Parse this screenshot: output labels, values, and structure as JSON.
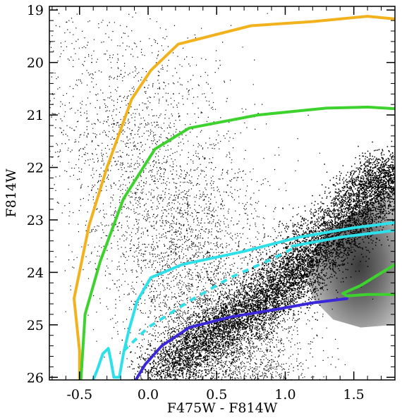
{
  "chart_data": {
    "type": "scatter",
    "xlabel": "F475W - F814W",
    "ylabel": "F814W",
    "xlim": [
      -0.72,
      1.8
    ],
    "ylim": [
      26.05,
      18.93
    ],
    "y_inverted": true,
    "x_ticks": [
      -0.5,
      0.0,
      0.5,
      1.0,
      1.5
    ],
    "x_tick_labels": [
      "-0.5",
      "0.0",
      "0.5",
      "1.0",
      "1.5"
    ],
    "y_ticks": [
      19,
      20,
      21,
      22,
      23,
      24,
      25,
      26
    ],
    "y_tick_labels": [
      "19",
      "20",
      "21",
      "22",
      "23",
      "24",
      "25",
      "26"
    ],
    "background": "dense black stellar color-magnitude point cloud with grey-shaded density region",
    "series": [
      {
        "color": "#f2b21e",
        "style": "solid",
        "points": [
          [
            -0.5,
            26.05
          ],
          [
            -0.5,
            25.5
          ],
          [
            -0.54,
            24.5
          ],
          [
            -0.43,
            23.1
          ],
          [
            -0.3,
            22.0
          ],
          [
            -0.12,
            20.7
          ],
          [
            0.02,
            20.15
          ],
          [
            0.22,
            19.65
          ],
          [
            0.75,
            19.3
          ],
          [
            1.2,
            19.22
          ],
          [
            1.6,
            19.12
          ],
          [
            1.8,
            19.17
          ]
        ]
      },
      {
        "color": "#3ed22e",
        "style": "solid",
        "points": [
          [
            -0.49,
            26.05
          ],
          [
            -0.46,
            24.8
          ],
          [
            -0.35,
            23.8
          ],
          [
            -0.18,
            22.6
          ],
          [
            0.05,
            21.65
          ],
          [
            0.3,
            21.25
          ],
          [
            0.8,
            21.0
          ],
          [
            1.3,
            20.87
          ],
          [
            1.6,
            20.85
          ],
          [
            1.8,
            20.88
          ]
        ]
      },
      {
        "color": "#3ed22e",
        "style": "solid",
        "points": [
          [
            1.8,
            23.85
          ],
          [
            1.55,
            24.25
          ],
          [
            1.42,
            24.4
          ],
          [
            1.45,
            24.45
          ],
          [
            1.6,
            24.42
          ],
          [
            1.8,
            24.42
          ]
        ]
      },
      {
        "color": "#2ee0ea",
        "style": "solid",
        "points": [
          [
            -0.4,
            26.05
          ],
          [
            -0.37,
            25.85
          ],
          [
            -0.33,
            25.55
          ],
          [
            -0.29,
            25.45
          ],
          [
            -0.27,
            25.7
          ],
          [
            -0.25,
            26.0
          ],
          [
            -0.21,
            26.0
          ],
          [
            -0.18,
            25.55
          ],
          [
            -0.14,
            25.1
          ],
          [
            -0.08,
            24.55
          ],
          [
            0.02,
            24.1
          ],
          [
            0.25,
            23.85
          ],
          [
            0.7,
            23.6
          ],
          [
            1.1,
            23.33
          ],
          [
            1.5,
            23.15
          ],
          [
            1.8,
            23.05
          ]
        ]
      },
      {
        "color": "#2ee0ea",
        "style": "solid",
        "points": [
          [
            1.05,
            23.5
          ],
          [
            1.4,
            23.33
          ],
          [
            1.8,
            23.2
          ]
        ]
      },
      {
        "color": "#2ee0ea",
        "style": "dashed",
        "points": [
          [
            -0.18,
            25.5
          ],
          [
            0.0,
            25.05
          ],
          [
            0.3,
            24.55
          ],
          [
            0.6,
            24.1
          ],
          [
            0.9,
            23.75
          ],
          [
            1.05,
            23.55
          ]
        ]
      },
      {
        "color": "#3a27d8",
        "style": "solid",
        "points": [
          [
            -0.09,
            26.05
          ],
          [
            -0.02,
            25.75
          ],
          [
            0.1,
            25.4
          ],
          [
            0.3,
            25.05
          ],
          [
            0.6,
            24.85
          ],
          [
            0.9,
            24.72
          ],
          [
            1.2,
            24.58
          ],
          [
            1.45,
            24.5
          ]
        ]
      }
    ]
  }
}
